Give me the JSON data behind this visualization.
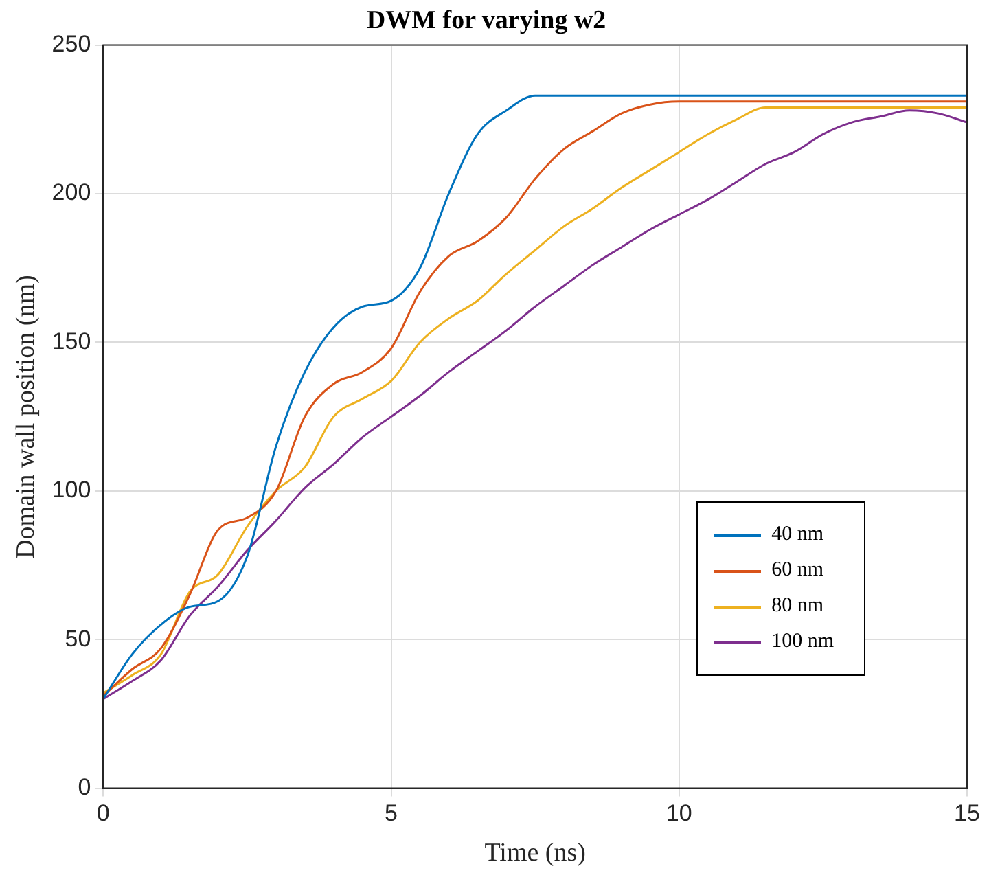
{
  "chart_data": {
    "type": "line",
    "title": "DWM for varying w2",
    "xlabel": "Time (ns)",
    "ylabel": "Domain wall position (nm)",
    "x": [
      0,
      0.5,
      1,
      1.5,
      2,
      2.5,
      3,
      3.5,
      4,
      4.5,
      5,
      5.5,
      6,
      6.5,
      7,
      7.5,
      8,
      8.5,
      9,
      9.5,
      10,
      10.5,
      11,
      11.5,
      12,
      12.5,
      13,
      13.5,
      14,
      14.5,
      15
    ],
    "series": [
      {
        "name": "40 nm",
        "color": "#0072bd",
        "values": [
          30,
          45,
          55,
          61,
          63,
          78,
          115,
          140,
          155,
          162,
          164,
          175,
          200,
          220,
          228,
          233,
          233,
          233,
          233,
          233,
          233,
          233,
          233,
          233,
          233,
          233,
          233,
          233,
          233,
          233,
          233
        ]
      },
      {
        "name": "60 nm",
        "color": "#d95319",
        "values": [
          31,
          40,
          47,
          65,
          87,
          91,
          100,
          125,
          136,
          140,
          148,
          167,
          179,
          184,
          192,
          205,
          215,
          221,
          227,
          230,
          231,
          231,
          231,
          231,
          231,
          231,
          231,
          231,
          231,
          231,
          231
        ]
      },
      {
        "name": "80 nm",
        "color": "#edb120",
        "values": [
          32,
          38,
          45,
          66,
          72,
          88,
          100,
          108,
          125,
          131,
          137,
          150,
          158,
          164,
          173,
          181,
          189,
          195,
          202,
          208,
          214,
          220,
          225,
          229,
          229,
          229,
          229,
          229,
          229,
          229,
          229
        ]
      },
      {
        "name": "100 nm",
        "color": "#7e2f8e",
        "values": [
          30,
          36,
          43,
          58,
          68,
          80,
          90,
          101,
          109,
          118,
          125,
          132,
          140,
          147,
          154,
          162,
          169,
          176,
          182,
          188,
          193,
          198,
          204,
          210,
          214,
          220,
          224,
          226,
          228,
          227,
          224
        ]
      }
    ],
    "xlim": [
      0,
      15
    ],
    "xticks": [
      0,
      5,
      10,
      15
    ],
    "ylim": [
      0,
      250
    ],
    "yticks": [
      0,
      50,
      100,
      150,
      200,
      250
    ],
    "grid": true,
    "legend": "bottom right",
    "marker": "none",
    "line_style": "solid"
  }
}
